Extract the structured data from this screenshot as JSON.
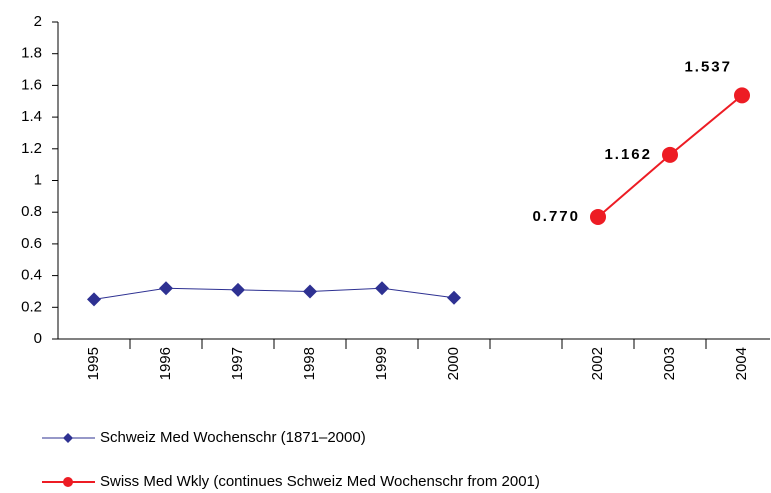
{
  "chart_data": {
    "type": "line",
    "categories": [
      "1995",
      "1996",
      "1997",
      "1998",
      "1999",
      "2000",
      null,
      "2002",
      "2003",
      "2004"
    ],
    "series": [
      {
        "name": "Schweiz Med Wochenschr (1871–2000)",
        "color": "#2e3192",
        "marker": "diamond",
        "values": [
          0.25,
          0.32,
          0.31,
          0.3,
          0.32,
          0.26,
          null,
          null,
          null,
          null
        ]
      },
      {
        "name": "Swiss Med Wkly (continues Schweiz Med Wochenschr from 2001)",
        "color": "#ed1c24",
        "marker": "circle",
        "values": [
          null,
          null,
          null,
          null,
          null,
          null,
          null,
          0.77,
          1.162,
          1.537
        ],
        "value_labels": [
          null,
          null,
          null,
          null,
          null,
          null,
          null,
          "0.770",
          "1.162",
          "1.537"
        ]
      }
    ],
    "ylim": [
      0,
      2
    ],
    "yticks": [
      0,
      0.2,
      0.4,
      0.6,
      0.8,
      1,
      1.2,
      1.4,
      1.6,
      1.8,
      2
    ],
    "grid": false
  }
}
